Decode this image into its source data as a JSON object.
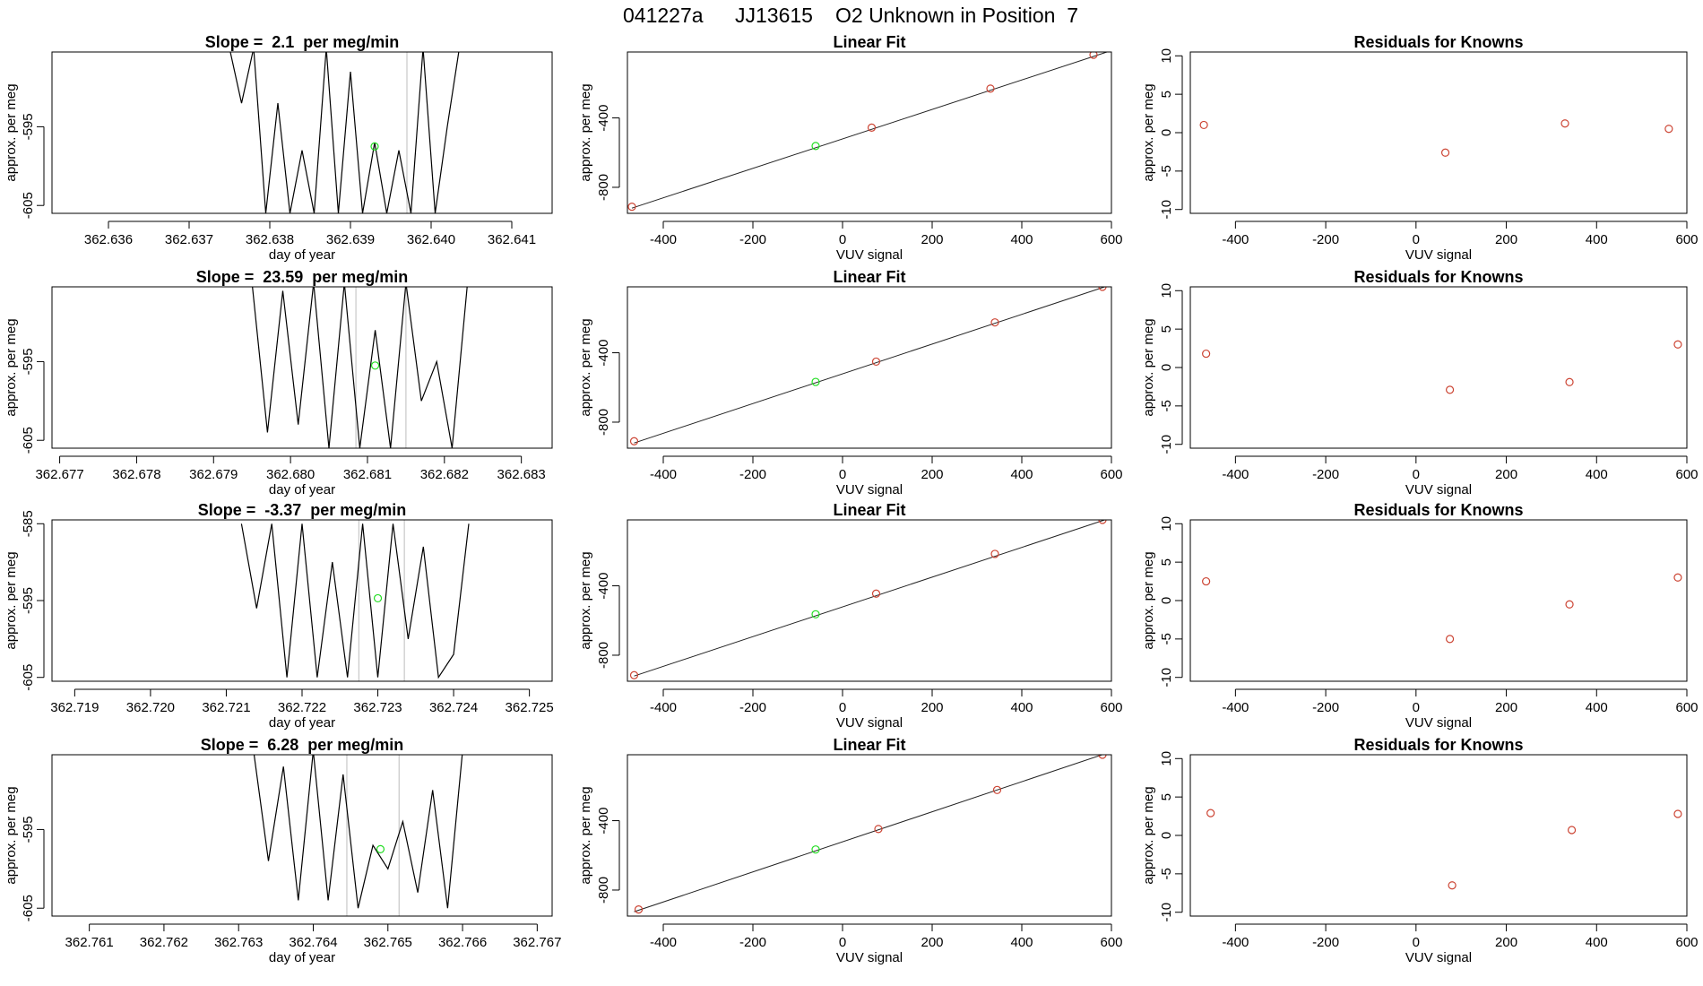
{
  "figure": {
    "title_parts": [
      "041227a",
      "JJ13615",
      "O2 Unknown in Position  7"
    ]
  },
  "chart_data": [
    {
      "type": "line",
      "panel": "timeseries",
      "row": 0,
      "title": "Slope =  2.1  per meg/min",
      "xlabel": "day of year",
      "ylabel": "approx. per meg",
      "xlim": [
        362.6353,
        362.6415
      ],
      "ylim": [
        -606,
        -585.5
      ],
      "xticks": [
        "362.636",
        "362.637",
        "362.638",
        "362.639",
        "362.640",
        "362.641"
      ],
      "yticks": [
        "-595",
        "-605"
      ],
      "vlines": [
        362.6397
      ],
      "x": [
        362.6375,
        362.63765,
        362.6378,
        362.63795,
        362.6381,
        362.63825,
        362.6384,
        362.63855,
        362.6387,
        362.63885,
        362.639,
        362.63915,
        362.6393,
        362.63945,
        362.6396,
        362.63975,
        362.6399,
        362.64005,
        362.6402,
        362.64035
      ],
      "y": [
        -585,
        -592,
        -585,
        -606,
        -592,
        -606,
        -598,
        -606,
        -585,
        -606,
        -588,
        -606,
        -597,
        -606,
        -598,
        -606,
        -585,
        -606,
        -595,
        -585
      ],
      "highlight": {
        "x": 362.6393,
        "y": -597.5,
        "color": "#22dd22"
      }
    },
    {
      "type": "scatter",
      "panel": "linear_fit",
      "row": 0,
      "title": "Linear Fit",
      "xlabel": "VUV signal",
      "ylabel": "approx. per meg",
      "xlim": [
        -480,
        600
      ],
      "ylim": [
        -950,
        -20
      ],
      "xticks": [
        -400,
        -200,
        0,
        200,
        400,
        600
      ],
      "yticks": [
        -400,
        -800
      ],
      "fit_line": {
        "x": [
          -470,
          590
        ],
        "y": [
          -920,
          -20
        ]
      },
      "points": {
        "x": [
          -470,
          65,
          330,
          560
        ],
        "y": [
          -912,
          -456,
          -231,
          -36
        ],
        "color": "#cc4433"
      },
      "unknown": {
        "x": -60,
        "y": -562,
        "color": "#22dd22"
      }
    },
    {
      "type": "scatter",
      "panel": "residuals",
      "row": 0,
      "title": "Residuals for Knowns",
      "xlabel": "VUV signal",
      "ylabel": "approx. per meg",
      "xlim": [
        -500,
        600
      ],
      "ylim": [
        -10.5,
        10.5
      ],
      "xticks": [
        -400,
        -200,
        0,
        200,
        400,
        600
      ],
      "yticks": [
        10,
        5,
        0,
        -5,
        -10
      ],
      "points": {
        "x": [
          -470,
          65,
          330,
          560
        ],
        "y": [
          1.0,
          -2.6,
          1.2,
          0.5
        ],
        "color": "#cc4433"
      }
    },
    {
      "type": "line",
      "panel": "timeseries",
      "row": 1,
      "title": "Slope =  23.59  per meg/min",
      "xlabel": "day of year",
      "ylabel": "approx. per meg",
      "xlim": [
        362.6769,
        362.6834
      ],
      "ylim": [
        -606,
        -585.5
      ],
      "xticks": [
        "362.677",
        "362.678",
        "362.679",
        "362.680",
        "362.681",
        "362.682",
        "362.683"
      ],
      "yticks": [
        "-595",
        "-605"
      ],
      "vlines": [
        362.68085,
        362.6815
      ],
      "x": [
        362.6795,
        362.6797,
        362.6799,
        362.6801,
        362.6803,
        362.6805,
        362.6807,
        362.6809,
        362.6811,
        362.6813,
        362.6815,
        362.6817,
        362.6819,
        362.6821,
        362.6823
      ],
      "y": [
        -585,
        -604,
        -586,
        -603,
        -585,
        -606,
        -585,
        -606,
        -591,
        -606,
        -585,
        -600,
        -595,
        -606,
        -585
      ],
      "highlight": {
        "x": 362.6811,
        "y": -595.5,
        "color": "#22dd22"
      }
    },
    {
      "type": "scatter",
      "panel": "linear_fit",
      "row": 1,
      "title": "Linear Fit",
      "xlabel": "VUV signal",
      "ylabel": "approx. per meg",
      "xlim": [
        -480,
        600
      ],
      "ylim": [
        -950,
        -20
      ],
      "xticks": [
        -400,
        -200,
        0,
        200,
        400,
        600
      ],
      "yticks": [
        -400,
        -800
      ],
      "fit_line": {
        "x": [
          -465,
          585
        ],
        "y": [
          -920,
          -20
        ]
      },
      "points": {
        "x": [
          -465,
          75,
          340,
          580
        ],
        "y": [
          -910,
          -451,
          -225,
          -20
        ],
        "color": "#cc4433"
      },
      "unknown": {
        "x": -60,
        "y": -568,
        "color": "#22dd22"
      }
    },
    {
      "type": "scatter",
      "panel": "residuals",
      "row": 1,
      "title": "Residuals for Knowns",
      "xlabel": "VUV signal",
      "ylabel": "approx. per meg",
      "xlim": [
        -500,
        600
      ],
      "ylim": [
        -10.5,
        10.5
      ],
      "xticks": [
        -400,
        -200,
        0,
        200,
        400,
        600
      ],
      "yticks": [
        10,
        5,
        0,
        -5,
        -10
      ],
      "points": {
        "x": [
          -465,
          75,
          340,
          580
        ],
        "y": [
          1.8,
          -2.9,
          -1.9,
          3.0
        ],
        "color": "#cc4433"
      }
    },
    {
      "type": "line",
      "panel": "timeseries",
      "row": 2,
      "title": "Slope =  -3.37  per meg/min",
      "xlabel": "day of year",
      "ylabel": "approx. per meg",
      "xlim": [
        362.7187,
        362.7253
      ],
      "ylim": [
        -605.5,
        -584.5
      ],
      "xticks": [
        "362.719",
        "362.720",
        "362.721",
        "362.722",
        "362.723",
        "362.724",
        "362.725"
      ],
      "yticks": [
        "-585",
        "-595",
        "-605"
      ],
      "vlines": [
        362.72275,
        362.72335
      ],
      "x": [
        362.7212,
        362.7214,
        362.7216,
        362.7218,
        362.722,
        362.7222,
        362.7224,
        362.7226,
        362.7228,
        362.723,
        362.7232,
        362.7234,
        362.7236,
        362.7238,
        362.724,
        362.7242
      ],
      "y": [
        -585,
        -596,
        -585,
        -605,
        -585,
        -605,
        -590,
        -605,
        -585,
        -605,
        -585,
        -600,
        -588,
        -605,
        -602,
        -585
      ],
      "highlight": {
        "x": 362.723,
        "y": -594.7,
        "color": "#22dd22"
      }
    },
    {
      "type": "scatter",
      "panel": "linear_fit",
      "row": 2,
      "title": "Linear Fit",
      "xlabel": "VUV signal",
      "ylabel": "approx. per meg",
      "xlim": [
        -480,
        600
      ],
      "ylim": [
        -950,
        -20
      ],
      "xticks": [
        -400,
        -200,
        0,
        200,
        400,
        600
      ],
      "yticks": [
        -400,
        -800
      ],
      "fit_line": {
        "x": [
          -465,
          585
        ],
        "y": [
          -920,
          -20
        ]
      },
      "points": {
        "x": [
          -465,
          75,
          340,
          580
        ],
        "y": [
          -915,
          -445,
          -216,
          -20
        ],
        "color": "#cc4433"
      },
      "unknown": {
        "x": -60,
        "y": -564,
        "color": "#22dd22"
      }
    },
    {
      "type": "scatter",
      "panel": "residuals",
      "row": 2,
      "title": "Residuals for Knowns",
      "xlabel": "VUV signal",
      "ylabel": "approx. per meg",
      "xlim": [
        -500,
        600
      ],
      "ylim": [
        -10.5,
        10.5
      ],
      "xticks": [
        -400,
        -200,
        0,
        200,
        400,
        600
      ],
      "yticks": [
        10,
        5,
        0,
        -5,
        -10
      ],
      "points": {
        "x": [
          -465,
          75,
          340,
          580
        ],
        "y": [
          2.5,
          -5.0,
          -0.5,
          3.0
        ],
        "color": "#cc4433"
      }
    },
    {
      "type": "line",
      "panel": "timeseries",
      "row": 3,
      "title": "Slope =  6.28  per meg/min",
      "xlabel": "day of year",
      "ylabel": "approx. per meg",
      "xlim": [
        362.7605,
        362.7672
      ],
      "ylim": [
        -606,
        -585.5
      ],
      "xticks": [
        "362.761",
        "362.762",
        "362.763",
        "362.764",
        "362.765",
        "362.766",
        "362.767"
      ],
      "yticks": [
        "-595",
        "-605"
      ],
      "vlines": [
        362.76445,
        362.76515
      ],
      "x": [
        362.7632,
        362.7634,
        362.7636,
        362.7638,
        362.764,
        362.7642,
        362.7644,
        362.7646,
        362.7648,
        362.765,
        362.7652,
        362.7654,
        362.7656,
        362.7658,
        362.766
      ],
      "y": [
        -585,
        -599,
        -587,
        -604,
        -585,
        -604,
        -588,
        -605,
        -597,
        -600,
        -594,
        -603,
        -590,
        -605,
        -585
      ],
      "highlight": {
        "x": 362.7649,
        "y": -597.5,
        "color": "#22dd22"
      }
    },
    {
      "type": "scatter",
      "panel": "linear_fit",
      "row": 3,
      "title": "Linear Fit",
      "xlabel": "VUV signal",
      "ylabel": "approx. per meg",
      "xlim": [
        -480,
        600
      ],
      "ylim": [
        -950,
        -20
      ],
      "xticks": [
        -400,
        -200,
        0,
        200,
        400,
        600
      ],
      "yticks": [
        -400,
        -800
      ],
      "fit_line": {
        "x": [
          -465,
          585
        ],
        "y": [
          -925,
          -15
        ]
      },
      "points": {
        "x": [
          -455,
          80,
          345,
          580
        ],
        "y": [
          -912,
          -448,
          -223,
          -20
        ],
        "color": "#cc4433"
      },
      "unknown": {
        "x": -60,
        "y": -566,
        "color": "#22dd22"
      }
    },
    {
      "type": "scatter",
      "panel": "residuals",
      "row": 3,
      "title": "Residuals for Knowns",
      "xlabel": "VUV signal",
      "ylabel": "approx. per meg",
      "xlim": [
        -500,
        600
      ],
      "ylim": [
        -10.5,
        10.5
      ],
      "xticks": [
        -400,
        -200,
        0,
        200,
        400,
        600
      ],
      "yticks": [
        10,
        5,
        0,
        -5,
        -10
      ],
      "points": {
        "x": [
          -455,
          80,
          345,
          580
        ],
        "y": [
          2.9,
          -6.5,
          0.7,
          2.8
        ],
        "color": "#cc4433"
      }
    }
  ]
}
